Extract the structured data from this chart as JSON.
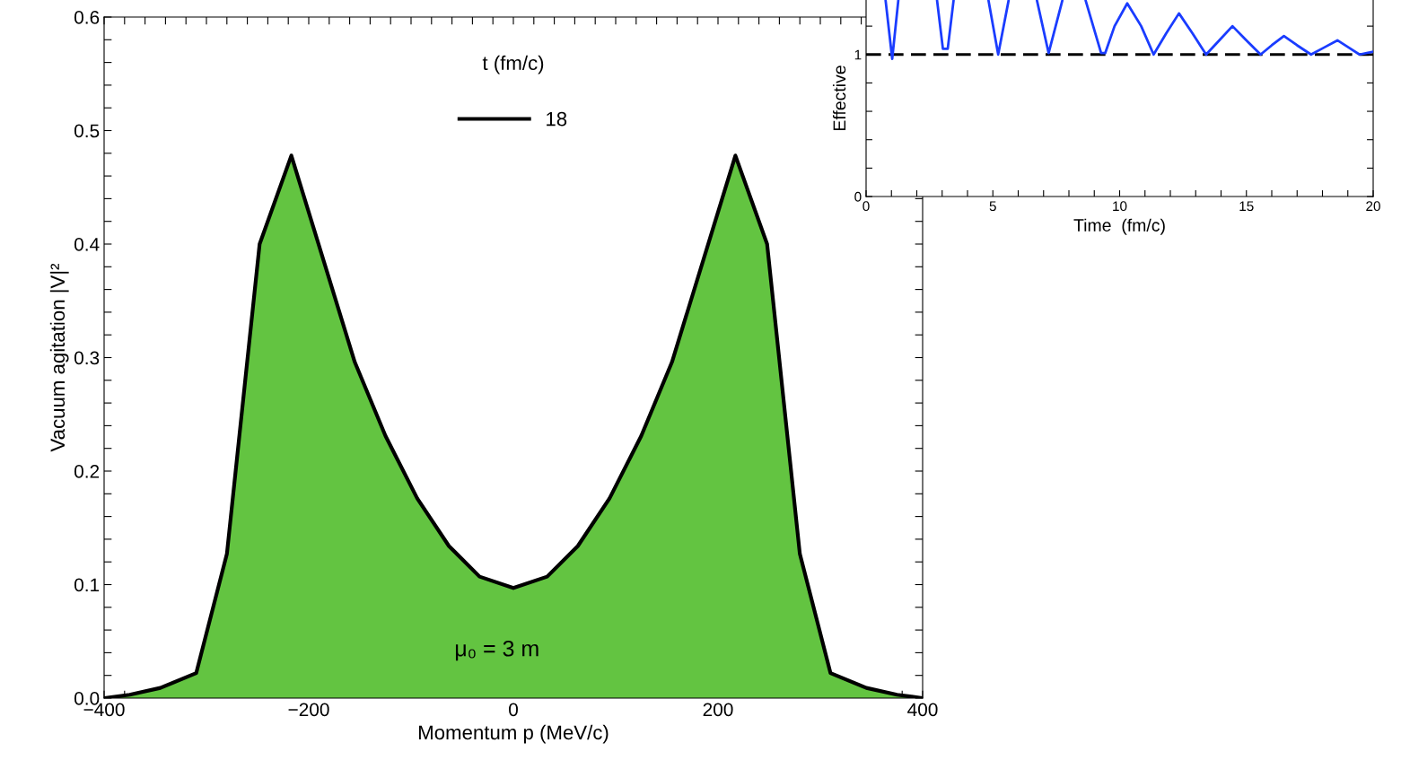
{
  "chart_data": [
    {
      "type": "area",
      "xlabel": "Momentum p (MeV/c)",
      "ylabel": "Vacuum agitation |V|²",
      "legend_title": "t (fm/c)",
      "legend": "top",
      "annotations": [
        "μ₀ = 3 m"
      ],
      "series": [
        {
          "type": "area",
          "name": "18",
          "color": "#63c441",
          "x": [
            -400,
            -375,
            -345,
            -310,
            -280,
            -248,
            -217,
            -155,
            -125,
            -94,
            -63,
            -33,
            0,
            33,
            63,
            94,
            125,
            155,
            217,
            248,
            280,
            310,
            345,
            375,
            400
          ],
          "values": [
            0,
            0.003,
            0.009,
            0.022,
            0.127,
            0.4,
            0.478,
            0.296,
            0.231,
            0.176,
            0.134,
            0.107,
            0.097,
            0.107,
            0.134,
            0.176,
            0.231,
            0.296,
            0.478,
            0.4,
            0.127,
            0.022,
            0.009,
            0.003,
            0
          ]
        }
      ],
      "xlim": [
        -400,
        400
      ],
      "xticks": [
        {
          "value": -400,
          "label": "−400"
        },
        {
          "value": -380,
          "label": null
        },
        {
          "value": -360,
          "label": null
        },
        {
          "value": -340,
          "label": null
        },
        {
          "value": -320,
          "label": null
        },
        {
          "value": -300,
          "label": null
        },
        {
          "value": -280,
          "label": null
        },
        {
          "value": -260,
          "label": null
        },
        {
          "value": -240,
          "label": null
        },
        {
          "value": -220,
          "label": null
        },
        {
          "value": -200,
          "label": "−200"
        },
        {
          "value": -180,
          "label": null
        },
        {
          "value": -160,
          "label": null
        },
        {
          "value": -140,
          "label": null
        },
        {
          "value": -120,
          "label": null
        },
        {
          "value": -100,
          "label": null
        },
        {
          "value": -80,
          "label": null
        },
        {
          "value": -60,
          "label": null
        },
        {
          "value": -40,
          "label": null
        },
        {
          "value": -20,
          "label": null
        },
        0,
        {
          "value": 20,
          "label": null
        },
        {
          "value": 40,
          "label": null
        },
        {
          "value": 60,
          "label": null
        },
        {
          "value": 80,
          "label": null
        },
        {
          "value": 100,
          "label": null
        },
        {
          "value": 120,
          "label": null
        },
        {
          "value": 140,
          "label": null
        },
        {
          "value": 160,
          "label": null
        },
        {
          "value": 180,
          "label": null
        },
        200,
        {
          "value": 220,
          "label": null
        },
        {
          "value": 240,
          "label": null
        },
        {
          "value": 260,
          "label": null
        },
        {
          "value": 280,
          "label": null
        },
        {
          "value": 300,
          "label": null
        },
        {
          "value": 320,
          "label": null
        },
        {
          "value": 340,
          "label": null
        },
        {
          "value": 360,
          "label": null
        },
        {
          "value": 380,
          "label": null
        },
        400
      ],
      "ylim": [
        0,
        0.6
      ],
      "yticks": [
        {
          "value": 0,
          "label": "0.0"
        },
        {
          "value": 0.02,
          "label": null
        },
        {
          "value": 0.04,
          "label": null
        },
        {
          "value": 0.06,
          "label": null
        },
        {
          "value": 0.08,
          "label": null
        },
        0.1,
        {
          "value": 0.12,
          "label": null
        },
        {
          "value": 0.14,
          "label": null
        },
        {
          "value": 0.16,
          "label": null
        },
        {
          "value": 0.18,
          "label": null
        },
        0.2,
        {
          "value": 0.22,
          "label": null
        },
        {
          "value": 0.24,
          "label": null
        },
        {
          "value": 0.26,
          "label": null
        },
        {
          "value": 0.28,
          "label": null
        },
        0.3,
        {
          "value": 0.32,
          "label": null
        },
        {
          "value": 0.34,
          "label": null
        },
        {
          "value": 0.36,
          "label": null
        },
        {
          "value": 0.38,
          "label": null
        },
        0.4,
        {
          "value": 0.42,
          "label": null
        },
        {
          "value": 0.44,
          "label": null
        },
        {
          "value": 0.46,
          "label": null
        },
        {
          "value": 0.48,
          "label": null
        },
        0.5,
        {
          "value": 0.52,
          "label": null
        },
        {
          "value": 0.54,
          "label": null
        },
        {
          "value": 0.56,
          "label": null
        },
        {
          "value": 0.58,
          "label": null
        },
        0.6
      ]
    },
    {
      "type": "line",
      "xlabel": "Time  (fm/c)",
      "ylabel": "Effective",
      "series": [
        {
          "color": "#1a3cff",
          "x": [
            0.77,
            1.03,
            1.27,
            1.28,
            2.8,
            3.03,
            3.22,
            3.45,
            3.46,
            4.83,
            5.21,
            5.62,
            5.63,
            6.74,
            7.2,
            7.74,
            7.75,
            8.66,
            9.27,
            9.43,
            9.8,
            10.3,
            10.85,
            11.34,
            11.84,
            12.34,
            12.87,
            13.41,
            13.93,
            14.45,
            15.0,
            15.56,
            16.0,
            16.48,
            17.0,
            17.55,
            18.07,
            18.59,
            19.03,
            19.46,
            20
          ],
          "values": [
            1.38,
            0.97,
            1.38,
            null,
            1.38,
            1.04,
            1.04,
            1.38,
            null,
            1.38,
            1.0,
            1.38,
            null,
            1.38,
            1.01,
            1.38,
            null,
            1.38,
            1.01,
            1.01,
            1.2,
            1.36,
            1.2,
            1.0,
            1.15,
            1.29,
            1.15,
            1.0,
            1.1,
            1.2,
            1.1,
            1.0,
            1.065,
            1.13,
            1.065,
            1.0,
            1.05,
            1.1,
            1.05,
            1.0,
            1.02
          ]
        }
      ],
      "ref_lines": [
        {
          "axis": "y",
          "value": 1,
          "color": "#000000",
          "line_style": "dashed"
        }
      ],
      "xlim": [
        0,
        20
      ],
      "xticks": [
        0,
        {
          "value": 1,
          "label": null
        },
        {
          "value": 2,
          "label": null
        },
        {
          "value": 3,
          "label": null
        },
        {
          "value": 4,
          "label": null
        },
        5,
        {
          "value": 6,
          "label": null
        },
        {
          "value": 7,
          "label": null
        },
        {
          "value": 8,
          "label": null
        },
        {
          "value": 9,
          "label": null
        },
        10,
        {
          "value": 11,
          "label": null
        },
        {
          "value": 12,
          "label": null
        },
        {
          "value": 13,
          "label": null
        },
        {
          "value": 14,
          "label": null
        },
        15,
        {
          "value": 16,
          "label": null
        },
        {
          "value": 17,
          "label": null
        },
        {
          "value": 18,
          "label": null
        },
        {
          "value": 19,
          "label": null
        },
        20
      ],
      "ylim": [
        0,
        1.384
      ],
      "yticks": [
        0,
        {
          "value": 0.2,
          "label": null
        },
        {
          "value": 0.4,
          "label": null
        },
        {
          "value": 0.6,
          "label": null
        },
        {
          "value": 0.8,
          "label": null
        },
        1,
        {
          "value": 1.2,
          "label": null
        }
      ]
    }
  ]
}
